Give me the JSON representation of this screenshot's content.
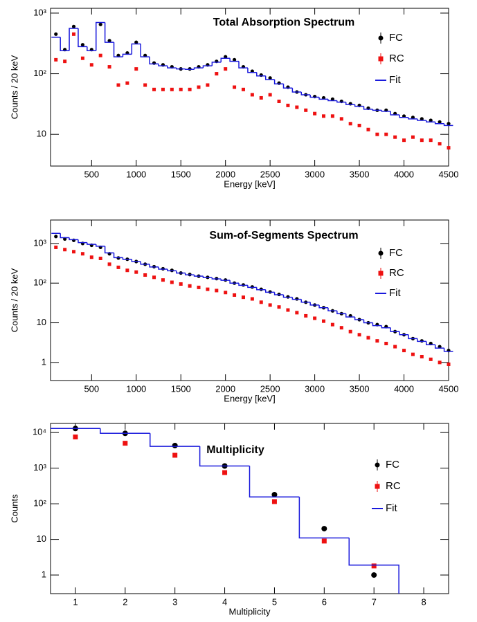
{
  "chart_data": [
    {
      "type": "scatter",
      "title": "Total Absorption Spectrum",
      "x_label": "Energy [keV]",
      "y_label": "Counts / 20 keV",
      "log_y": true,
      "legend": "upper right",
      "xlim": [
        40,
        4500
      ],
      "ylim": [
        3,
        1200
      ],
      "xticks": [
        500,
        1000,
        1500,
        2000,
        2500,
        3000,
        3500,
        4000,
        4500
      ],
      "yticks": [
        10,
        {
          "value": 100,
          "label": "10²"
        },
        {
          "value": 1000,
          "label": "10³"
        }
      ],
      "x": [
        100,
        200,
        300,
        400,
        500,
        600,
        700,
        800,
        900,
        1000,
        1100,
        1200,
        1300,
        1400,
        1500,
        1600,
        1700,
        1800,
        1900,
        2000,
        2100,
        2200,
        2300,
        2400,
        2500,
        2600,
        2700,
        2800,
        2900,
        3000,
        3100,
        3200,
        3300,
        3400,
        3500,
        3600,
        3700,
        3800,
        3900,
        4000,
        4100,
        4200,
        4300,
        4400,
        4500
      ],
      "series": [
        {
          "name": "FC",
          "color": "#000000",
          "marker": "circle",
          "values": [
            450,
            250,
            600,
            300,
            250,
            650,
            350,
            200,
            220,
            330,
            200,
            150,
            140,
            130,
            120,
            120,
            130,
            140,
            160,
            190,
            170,
            130,
            110,
            95,
            85,
            70,
            60,
            50,
            45,
            42,
            40,
            38,
            35,
            32,
            30,
            27,
            25,
            25,
            22,
            20,
            19,
            18,
            17,
            16,
            15
          ]
        },
        {
          "name": "RC",
          "color": "#ee1111",
          "marker": "square",
          "values": [
            170,
            160,
            450,
            180,
            140,
            200,
            130,
            65,
            70,
            120,
            65,
            55,
            55,
            55,
            55,
            55,
            60,
            65,
            100,
            120,
            60,
            55,
            45,
            40,
            45,
            35,
            30,
            28,
            25,
            22,
            20,
            20,
            18,
            15,
            14,
            12,
            10,
            10,
            9,
            8,
            9,
            8,
            8,
            7,
            6
          ]
        },
        {
          "name": "Fit",
          "color": "#1a1adc",
          "marker": "step",
          "values": [
            400,
            240,
            560,
            280,
            240,
            700,
            330,
            190,
            210,
            310,
            190,
            145,
            135,
            125,
            120,
            118,
            125,
            135,
            155,
            180,
            160,
            125,
            105,
            92,
            80,
            68,
            58,
            50,
            45,
            41,
            38,
            36,
            34,
            31,
            29,
            26,
            25,
            24,
            21,
            19,
            18,
            17,
            16,
            15,
            14
          ]
        }
      ]
    },
    {
      "type": "scatter",
      "title": "Sum-of-Segments Spectrum",
      "x_label": "Energy [keV]",
      "y_label": "Counts / 20 keV",
      "log_y": true,
      "legend": "upper right",
      "xlim": [
        40,
        4500
      ],
      "ylim": [
        0.35,
        3900
      ],
      "xticks": [
        500,
        1000,
        1500,
        2000,
        2500,
        3000,
        3500,
        4000,
        4500
      ],
      "yticks": [
        1,
        10,
        {
          "value": 100,
          "label": "10²"
        },
        {
          "value": 1000,
          "label": "10³"
        }
      ],
      "x": [
        100,
        200,
        300,
        400,
        500,
        600,
        700,
        800,
        900,
        1000,
        1100,
        1200,
        1300,
        1400,
        1500,
        1600,
        1700,
        1800,
        1900,
        2000,
        2100,
        2200,
        2300,
        2400,
        2500,
        2600,
        2700,
        2800,
        2900,
        3000,
        3100,
        3200,
        3300,
        3400,
        3500,
        3600,
        3700,
        3800,
        3900,
        4000,
        4100,
        4200,
        4300,
        4400,
        4500
      ],
      "series": [
        {
          "name": "FC",
          "color": "#000000",
          "marker": "circle",
          "values": [
            1500,
            1300,
            1200,
            1000,
            900,
            800,
            550,
            430,
            400,
            350,
            300,
            260,
            230,
            210,
            180,
            165,
            150,
            140,
            130,
            120,
            100,
            90,
            80,
            70,
            60,
            52,
            45,
            40,
            33,
            28,
            24,
            20,
            17,
            15,
            12,
            10,
            9,
            8,
            6,
            5,
            4,
            3.5,
            3,
            2.5,
            2
          ]
        },
        {
          "name": "RC",
          "color": "#ee1111",
          "marker": "square",
          "values": [
            800,
            700,
            620,
            550,
            450,
            420,
            300,
            250,
            210,
            190,
            160,
            140,
            120,
            105,
            95,
            85,
            78,
            70,
            65,
            58,
            50,
            44,
            40,
            33,
            28,
            25,
            21,
            18,
            15,
            13,
            11,
            9,
            7.5,
            6,
            5,
            4.2,
            3.5,
            3,
            2.5,
            2,
            1.6,
            1.4,
            1.2,
            1,
            0.9
          ]
        },
        {
          "name": "Fit",
          "color": "#1a1adc",
          "marker": "step",
          "values": [
            1800,
            1400,
            1250,
            1050,
            950,
            850,
            580,
            440,
            400,
            350,
            300,
            255,
            225,
            205,
            180,
            162,
            150,
            138,
            128,
            118,
            100,
            88,
            78,
            68,
            59,
            51,
            44,
            39,
            33,
            28,
            24,
            20,
            17,
            14,
            12,
            10,
            8.5,
            7.5,
            6,
            5,
            4,
            3.4,
            2.8,
            2.3,
            1.9
          ]
        }
      ]
    },
    {
      "type": "scatter",
      "title": "Multiplicity",
      "x_label": "Multiplicity",
      "y_label": "Counts",
      "log_y": true,
      "legend": "upper right",
      "xlim": [
        0.5,
        8.5
      ],
      "ylim": [
        0.3,
        18000
      ],
      "xticks": [
        1,
        2,
        3,
        4,
        5,
        6,
        7,
        8
      ],
      "yticks": [
        1,
        10,
        {
          "value": 100,
          "label": "10²"
        },
        {
          "value": 1000,
          "label": "10³"
        },
        {
          "value": 10000,
          "label": "10⁴"
        }
      ],
      "x": [
        1,
        2,
        3,
        4,
        5,
        6,
        7
      ],
      "series": [
        {
          "name": "FC",
          "color": "#000000",
          "marker": "circle",
          "values": [
            13000,
            9500,
            4300,
            1150,
            180,
            20,
            1
          ]
        },
        {
          "name": "RC",
          "color": "#ee1111",
          "marker": "square",
          "values": [
            7500,
            5000,
            2300,
            750,
            115,
            9,
            1.8
          ]
        },
        {
          "name": "Fit",
          "color": "#1a1adc",
          "marker": "step",
          "values": [
            13000,
            9500,
            4100,
            1150,
            155,
            11,
            1.9
          ]
        }
      ]
    }
  ]
}
